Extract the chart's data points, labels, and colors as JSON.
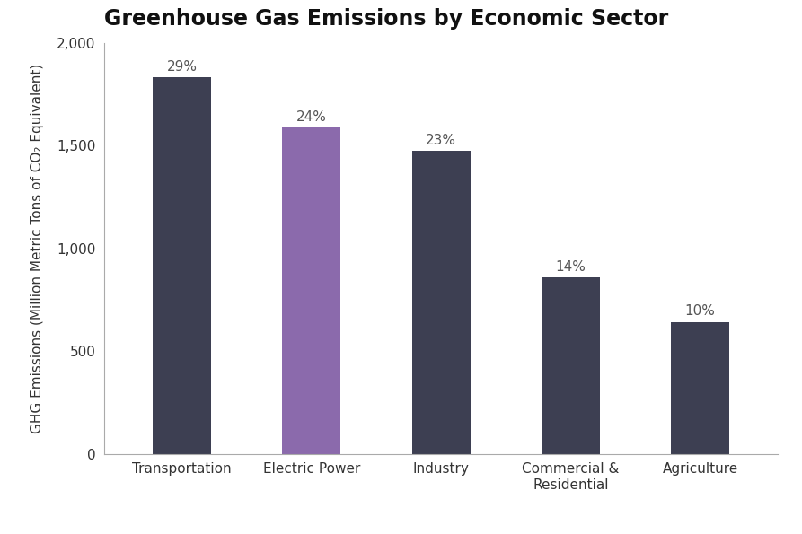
{
  "title": "Greenhouse Gas Emissions by Economic Sector",
  "categories": [
    "Transportation",
    "Electric Power",
    "Industry",
    "Commercial &\nResidential",
    "Agriculture"
  ],
  "values": [
    1832,
    1587,
    1474,
    857,
    641
  ],
  "percentages": [
    "29%",
    "24%",
    "23%",
    "14%",
    "10%"
  ],
  "bar_colors": [
    "#3d3f52",
    "#8b6aac",
    "#3d3f52",
    "#3d3f52",
    "#3d3f52"
  ],
  "ylabel": "GHG Emissions (Million Metric Tons of CO₂ Equivalent)",
  "ylim": [
    0,
    2000
  ],
  "yticks": [
    0,
    500,
    1000,
    1500,
    2000
  ],
  "background_color": "#ffffff",
  "title_fontsize": 17,
  "label_fontsize": 11,
  "tick_fontsize": 11,
  "annotation_fontsize": 11,
  "bar_width": 0.45
}
